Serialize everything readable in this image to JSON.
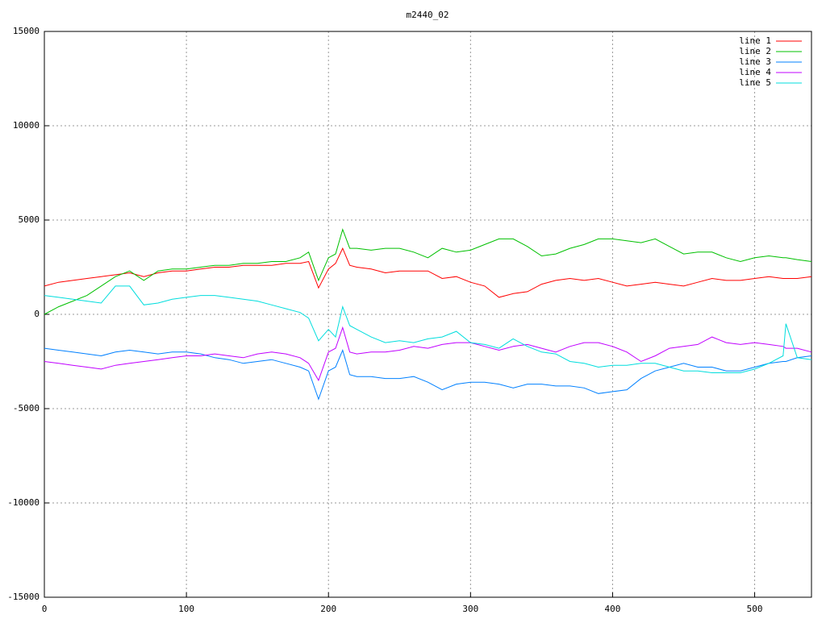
{
  "chart_data": {
    "type": "line",
    "title": "m2440_02",
    "x": [
      0,
      10,
      20,
      30,
      40,
      50,
      60,
      70,
      80,
      90,
      100,
      110,
      120,
      130,
      140,
      150,
      160,
      170,
      180,
      186,
      193,
      200,
      205,
      210,
      215,
      220,
      230,
      240,
      250,
      260,
      270,
      280,
      290,
      300,
      310,
      320,
      330,
      340,
      350,
      360,
      370,
      380,
      390,
      400,
      410,
      420,
      430,
      440,
      450,
      460,
      470,
      480,
      490,
      500,
      510,
      520,
      522,
      530,
      540
    ],
    "series": [
      {
        "name": "line 1",
        "color": "#ff0000",
        "values": [
          1500,
          1700,
          1800,
          1900,
          2000,
          2100,
          2200,
          2000,
          2200,
          2300,
          2300,
          2400,
          2500,
          2500,
          2600,
          2600,
          2600,
          2700,
          2700,
          2800,
          1400,
          2400,
          2700,
          3500,
          2600,
          2500,
          2400,
          2200,
          2300,
          2300,
          2300,
          1900,
          2000,
          1700,
          1500,
          900,
          1100,
          1200,
          1600,
          1800,
          1900,
          1800,
          1900,
          1700,
          1500,
          1600,
          1700,
          1600,
          1500,
          1700,
          1900,
          1800,
          1800,
          1900,
          2000,
          1900,
          1900,
          1900,
          2000
        ]
      },
      {
        "name": "line 2",
        "color": "#00c000",
        "values": [
          0,
          400,
          700,
          1000,
          1500,
          2000,
          2300,
          1800,
          2300,
          2400,
          2400,
          2500,
          2600,
          2600,
          2700,
          2700,
          2800,
          2800,
          3000,
          3300,
          1800,
          3000,
          3200,
          4500,
          3500,
          3500,
          3400,
          3500,
          3500,
          3300,
          3000,
          3500,
          3300,
          3400,
          3700,
          4000,
          4000,
          3600,
          3100,
          3200,
          3500,
          3700,
          4000,
          4000,
          3900,
          3800,
          4000,
          3600,
          3200,
          3300,
          3300,
          3000,
          2800,
          3000,
          3100,
          3000,
          3000,
          2900,
          2800
        ]
      },
      {
        "name": "line 3",
        "color": "#0080ff",
        "values": [
          -1800,
          -1900,
          -2000,
          -2100,
          -2200,
          -2000,
          -1900,
          -2000,
          -2100,
          -2000,
          -2000,
          -2100,
          -2300,
          -2400,
          -2600,
          -2500,
          -2400,
          -2600,
          -2800,
          -3000,
          -4500,
          -3000,
          -2800,
          -1900,
          -3200,
          -3300,
          -3300,
          -3400,
          -3400,
          -3300,
          -3600,
          -4000,
          -3700,
          -3600,
          -3600,
          -3700,
          -3900,
          -3700,
          -3700,
          -3800,
          -3800,
          -3900,
          -4200,
          -4100,
          -4000,
          -3400,
          -3000,
          -2800,
          -2600,
          -2800,
          -2800,
          -3000,
          -3000,
          -2800,
          -2600,
          -2500,
          -2500,
          -2300,
          -2200
        ]
      },
      {
        "name": "line 4",
        "color": "#c000ff",
        "values": [
          -2500,
          -2600,
          -2700,
          -2800,
          -2900,
          -2700,
          -2600,
          -2500,
          -2400,
          -2300,
          -2200,
          -2200,
          -2100,
          -2200,
          -2300,
          -2100,
          -2000,
          -2100,
          -2300,
          -2600,
          -3500,
          -2000,
          -1800,
          -700,
          -2000,
          -2100,
          -2000,
          -2000,
          -1900,
          -1700,
          -1800,
          -1600,
          -1500,
          -1500,
          -1700,
          -1900,
          -1700,
          -1600,
          -1800,
          -2000,
          -1700,
          -1500,
          -1500,
          -1700,
          -2000,
          -2500,
          -2200,
          -1800,
          -1700,
          -1600,
          -1200,
          -1500,
          -1600,
          -1500,
          -1600,
          -1700,
          -1800,
          -1800,
          -2000
        ]
      },
      {
        "name": "line 5",
        "color": "#00dddd",
        "values": [
          1000,
          900,
          800,
          700,
          600,
          1500,
          1500,
          500,
          600,
          800,
          900,
          1000,
          1000,
          900,
          800,
          700,
          500,
          300,
          100,
          -200,
          -1400,
          -800,
          -1200,
          400,
          -600,
          -800,
          -1200,
          -1500,
          -1400,
          -1500,
          -1300,
          -1200,
          -900,
          -1500,
          -1600,
          -1800,
          -1300,
          -1700,
          -2000,
          -2100,
          -2500,
          -2600,
          -2800,
          -2700,
          -2700,
          -2600,
          -2600,
          -2800,
          -3000,
          -3000,
          -3100,
          -3100,
          -3100,
          -2900,
          -2600,
          -2200,
          -500,
          -2300,
          -2400
        ]
      }
    ],
    "xlim": [
      0,
      540
    ],
    "ylim": [
      -15000,
      15000
    ],
    "xticks": [
      0,
      100,
      200,
      300,
      400,
      500
    ],
    "yticks": [
      -15000,
      -10000,
      -5000,
      0,
      5000,
      10000,
      15000
    ],
    "grid": true,
    "legend": "top-right"
  }
}
